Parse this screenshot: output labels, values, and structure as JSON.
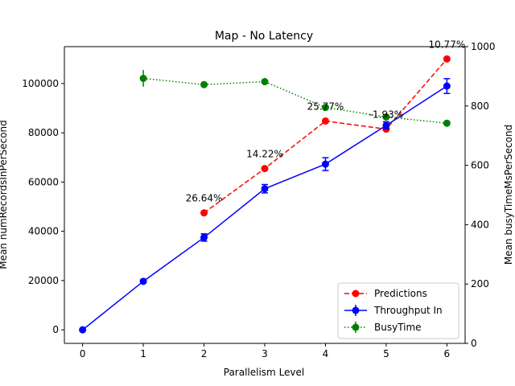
{
  "chart_data": {
    "type": "line",
    "title": "Map - No Latency",
    "xlabel": "Parallelism Level",
    "ylabel_left": "Mean numRecordsInPerSecond",
    "ylabel_right": "Mean busyTimeMsPerSecond",
    "x_ticks": [
      0,
      1,
      2,
      3,
      4,
      5,
      6
    ],
    "xlim": [
      -0.3,
      6.3
    ],
    "ylim_left": [
      -5500,
      115000
    ],
    "ylim_right": [
      0,
      1000
    ],
    "y_ticks_left": [
      0,
      20000,
      40000,
      60000,
      80000,
      100000
    ],
    "y_ticks_right": [
      0,
      200,
      400,
      600,
      800,
      1000
    ],
    "grid": false,
    "legend_placement": "lower-right",
    "series": [
      {
        "name": "Predictions",
        "axis": "left",
        "style": "dashed",
        "marker": "circle",
        "color": "#ff0000",
        "x": [
          2,
          3,
          4,
          5,
          6
        ],
        "values": [
          47500,
          65500,
          84800,
          81500,
          110000
        ]
      },
      {
        "name": "Throughput In",
        "axis": "left",
        "style": "solid",
        "marker": "circle",
        "color": "#0000ff",
        "x": [
          0,
          1,
          2,
          3,
          4,
          5,
          6
        ],
        "values": [
          0,
          19700,
          37500,
          57300,
          67300,
          83000,
          99000
        ],
        "errors": [
          0,
          600,
          1500,
          1700,
          2600,
          1500,
          3000
        ]
      },
      {
        "name": "BusyTime",
        "axis": "right",
        "style": "dotted",
        "marker": "circle",
        "color": "#008000",
        "x": [
          1,
          2,
          3,
          4,
          5,
          6
        ],
        "values": [
          893,
          872,
          882,
          795,
          763,
          742
        ],
        "errors": [
          28,
          8,
          7,
          10,
          8,
          5
        ]
      }
    ],
    "annotations": [
      {
        "text": "26.64%",
        "x": 2,
        "y": 47500
      },
      {
        "text": "14.22%",
        "x": 3,
        "y": 65500
      },
      {
        "text": "25.77%",
        "x": 4,
        "y": 84800
      },
      {
        "text": "-1.93%",
        "x": 5,
        "y": 81500
      },
      {
        "text": "10.77%",
        "x": 6,
        "y": 110000
      }
    ]
  }
}
